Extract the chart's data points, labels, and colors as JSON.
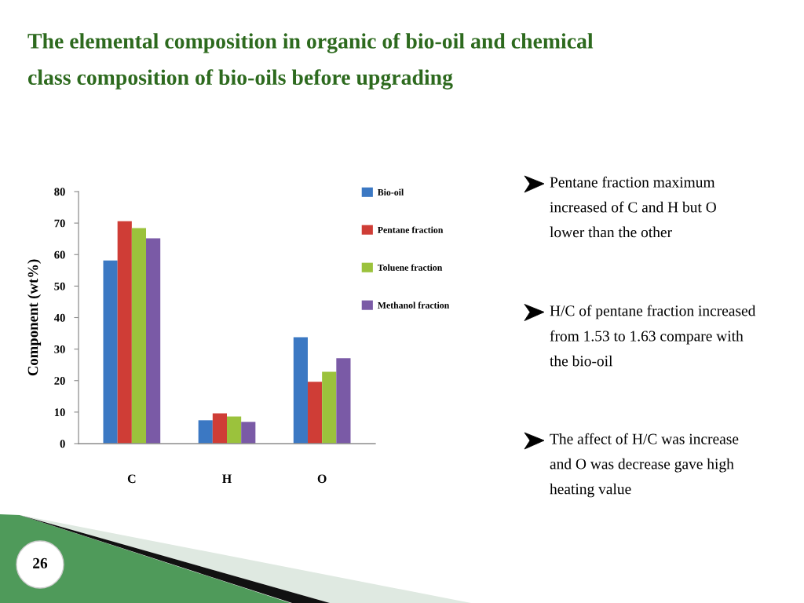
{
  "chart_data": {
    "type": "bar",
    "title": "The elemental composition in organic of bio-oil and chemical\nclass composition of bio-oils before upgrading",
    "ylabel": "Component (wt%)",
    "categories": [
      "C",
      "H",
      "O"
    ],
    "series": [
      {
        "name": "Bio-oil",
        "color": "#3b78c3",
        "values": [
          58.1,
          7.4,
          33.8
        ]
      },
      {
        "name": "Pentane fraction",
        "color": "#cf3d36",
        "values": [
          70.6,
          9.6,
          19.6
        ]
      },
      {
        "name": "Toluene fraction",
        "color": "#9bc23c",
        "values": [
          68.4,
          8.6,
          22.8
        ]
      },
      {
        "name": "Methanol fraction",
        "color": "#7a5aa6",
        "values": [
          65.2,
          6.9,
          27.1
        ]
      }
    ],
    "ylim": [
      0,
      80
    ],
    "yticks": [
      0,
      10,
      20,
      30,
      40,
      50,
      60,
      70,
      80
    ],
    "legend": "top right",
    "annotations": [
      "Pentane fraction maximum\nincreased of C and H but O\nlower than the other",
      "H/C of pentane fraction increased\nfrom 1.53 to 1.63 compare with\nthe bio-oil",
      "The affect of H/C was increase\nand O was decrease gave high\nheating value",
      "26"
    ]
  }
}
